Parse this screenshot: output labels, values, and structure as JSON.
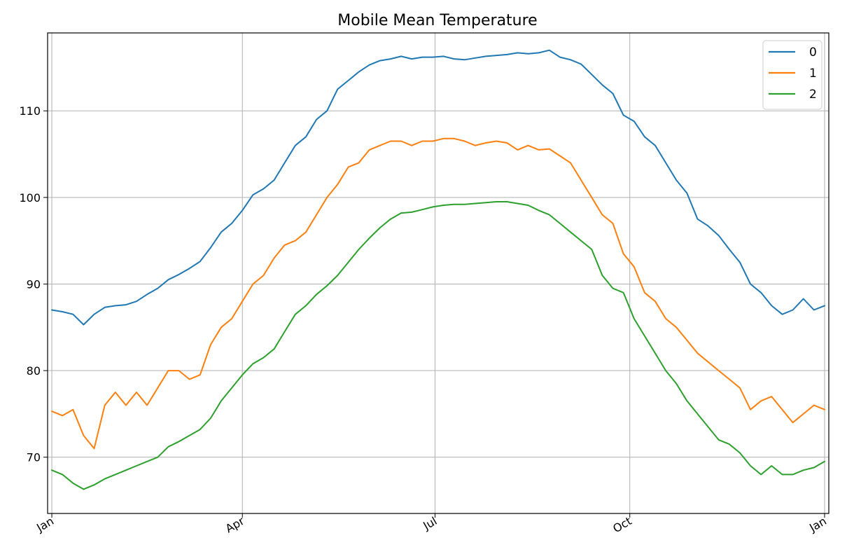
{
  "chart_data": {
    "type": "line",
    "title": "Mobile Mean Temperature",
    "xlabel": "",
    "ylabel": "",
    "x_range_days": [
      -2,
      367
    ],
    "ylim": [
      63.5,
      119
    ],
    "grid": true,
    "legend_placement": "top-right",
    "x_ticks": [
      {
        "day": 0,
        "label": "Jan"
      },
      {
        "day": 90,
        "label": "Apr"
      },
      {
        "day": 181,
        "label": "Jul"
      },
      {
        "day": 273,
        "label": "Oct"
      },
      {
        "day": 365,
        "label": "Jan"
      }
    ],
    "y_ticks": [
      70,
      80,
      90,
      100,
      110
    ],
    "series": [
      {
        "name": "0",
        "color": "#1f77b4",
        "x": [
          0,
          5,
          10,
          15,
          20,
          25,
          30,
          35,
          40,
          45,
          50,
          55,
          60,
          65,
          70,
          75,
          80,
          85,
          90,
          95,
          100,
          105,
          110,
          115,
          120,
          125,
          130,
          135,
          140,
          145,
          150,
          155,
          160,
          165,
          170,
          175,
          180,
          185,
          190,
          195,
          200,
          205,
          210,
          215,
          220,
          225,
          230,
          235,
          240,
          245,
          250,
          255,
          260,
          265,
          270,
          275,
          280,
          285,
          290,
          295,
          300,
          305,
          310,
          315,
          320,
          325,
          330,
          335,
          340,
          345,
          350,
          355,
          360,
          365
        ],
        "values": [
          87,
          86.8,
          86.5,
          85.3,
          86.5,
          87.3,
          87.5,
          87.6,
          88,
          88.8,
          89.5,
          90.5,
          91.1,
          91.8,
          92.6,
          94.2,
          96,
          97,
          98.5,
          100.3,
          101,
          102,
          104,
          106,
          107,
          109,
          110,
          112.5,
          113.5,
          114.5,
          115.3,
          115.8,
          116,
          116.3,
          116,
          116.2,
          116.2,
          116.3,
          116,
          115.9,
          116.1,
          116.3,
          116.4,
          116.5,
          116.7,
          116.6,
          116.7,
          117,
          116.2,
          115.9,
          115.4,
          114.2,
          113,
          112,
          109.5,
          108.8,
          107,
          106,
          104,
          102,
          100.5,
          97.5,
          96.7,
          95.6,
          94,
          92.5,
          90,
          89,
          87.5,
          86.5,
          87,
          88.3,
          87,
          87.5
        ]
      },
      {
        "name": "1",
        "color": "#ff7f0e",
        "x": [
          0,
          5,
          10,
          15,
          20,
          25,
          30,
          35,
          40,
          45,
          50,
          55,
          60,
          65,
          70,
          75,
          80,
          85,
          90,
          95,
          100,
          105,
          110,
          115,
          120,
          125,
          130,
          135,
          140,
          145,
          150,
          155,
          160,
          165,
          170,
          175,
          180,
          185,
          190,
          195,
          200,
          205,
          210,
          215,
          220,
          225,
          230,
          235,
          240,
          245,
          250,
          255,
          260,
          265,
          270,
          275,
          280,
          285,
          290,
          295,
          300,
          305,
          310,
          315,
          320,
          325,
          330,
          335,
          340,
          345,
          350,
          355,
          360,
          365
        ],
        "values": [
          75.3,
          74.8,
          75.5,
          72.5,
          71,
          76,
          77.5,
          76,
          77.5,
          76,
          78,
          80,
          80,
          79,
          79.5,
          83,
          85,
          86,
          88,
          90,
          91,
          93,
          94.5,
          95,
          96,
          98,
          100,
          101.5,
          103.5,
          104,
          105.5,
          106,
          106.5,
          106.5,
          106,
          106.5,
          106.5,
          106.8,
          106.8,
          106.5,
          106,
          106.3,
          106.5,
          106.3,
          105.5,
          106,
          105.5,
          105.6,
          104.8,
          104,
          102,
          100,
          98,
          97,
          93.5,
          92,
          89,
          88,
          86,
          85,
          83.5,
          82,
          81,
          80,
          79,
          78,
          75.5,
          76.5,
          77,
          75.5,
          74,
          75,
          76,
          75.5
        ]
      },
      {
        "name": "2",
        "color": "#2ca02c",
        "x": [
          0,
          5,
          10,
          15,
          20,
          25,
          30,
          35,
          40,
          45,
          50,
          55,
          60,
          65,
          70,
          75,
          80,
          85,
          90,
          95,
          100,
          105,
          110,
          115,
          120,
          125,
          130,
          135,
          140,
          145,
          150,
          155,
          160,
          165,
          170,
          175,
          180,
          185,
          190,
          195,
          200,
          205,
          210,
          215,
          220,
          225,
          230,
          235,
          240,
          245,
          250,
          255,
          260,
          265,
          270,
          275,
          280,
          285,
          290,
          295,
          300,
          305,
          310,
          315,
          320,
          325,
          330,
          335,
          340,
          345,
          350,
          355,
          360,
          365
        ],
        "values": [
          68.5,
          68,
          67,
          66.3,
          66.8,
          67.5,
          68,
          68.5,
          69,
          69.5,
          70,
          71.2,
          71.8,
          72.5,
          73.2,
          74.5,
          76.5,
          78,
          79.5,
          80.8,
          81.5,
          82.5,
          84.5,
          86.5,
          87.5,
          88.8,
          89.8,
          91,
          92.5,
          94,
          95.3,
          96.5,
          97.5,
          98.2,
          98.3,
          98.6,
          98.9,
          99.1,
          99.2,
          99.2,
          99.3,
          99.4,
          99.5,
          99.5,
          99.3,
          99.1,
          98.5,
          98,
          97,
          96,
          95,
          94,
          91,
          89.5,
          89,
          86,
          84,
          82,
          80,
          78.5,
          76.5,
          75,
          73.5,
          72,
          71.5,
          70.5,
          69,
          68,
          69,
          68,
          68,
          68.5,
          68.8,
          69.5
        ]
      }
    ]
  }
}
